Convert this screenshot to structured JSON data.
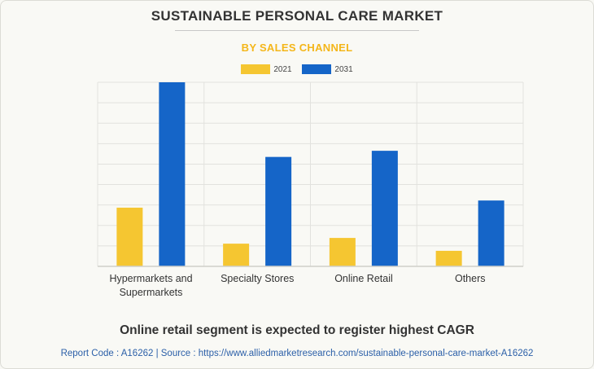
{
  "header": {
    "title": "SUSTAINABLE PERSONAL CARE MARKET",
    "subtitle": "BY SALES CHANNEL"
  },
  "footer": {
    "note": "Online retail segment is expected to register highest CAGR",
    "source": "Report Code : A16262  |  Source : https://www.alliedmarketresearch.com/sustainable-personal-care-market-A16262"
  },
  "colors": {
    "series_2021": "#f5c631",
    "series_2031": "#1565c8",
    "grid": "#e2e2de",
    "axis": "#cfcfca",
    "title": "#333333",
    "subtitle": "#f4b61a",
    "source": "#2b5fa8"
  },
  "chart_data": {
    "type": "bar",
    "title": "SUSTAINABLE PERSONAL CARE MARKET",
    "subtitle": "BY SALES CHANNEL",
    "categories": [
      "Hypermarkets and Supermarkets",
      "Specialty Stores",
      "Online Retail",
      "Others"
    ],
    "series": [
      {
        "name": "2021",
        "values": [
          28.7,
          11.1,
          13.9,
          7.6
        ]
      },
      {
        "name": "2031",
        "values": [
          90,
          53.5,
          56.5,
          32.2
        ]
      }
    ],
    "ylim": [
      0,
      90
    ],
    "grid": true,
    "legend": "top-center",
    "xlabel": "",
    "ylabel": ""
  }
}
